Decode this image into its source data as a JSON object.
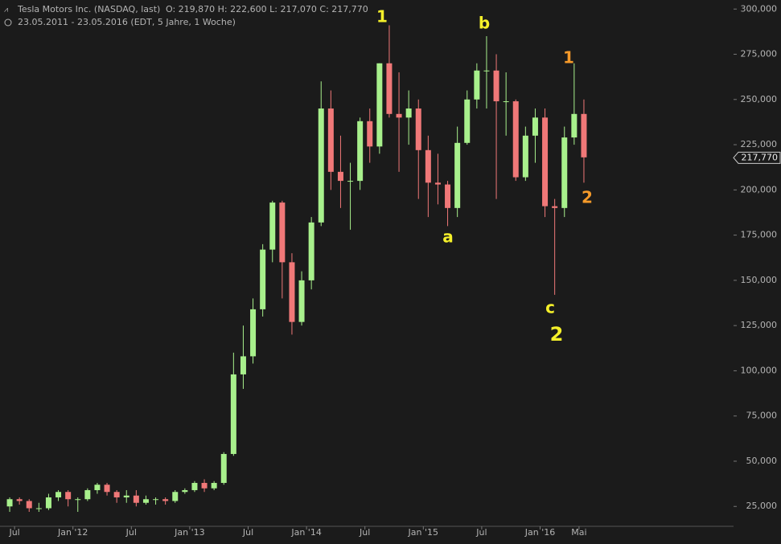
{
  "chart_data": {
    "type": "candlestick",
    "title": "Tesla Motors Inc. (NASDAQ, last)",
    "quote": "O: 219,870   H: 222,600   L: 217,070   C: 217,770",
    "subtitle": "23.05.2011 - 23.05.2016 (EDT, 5 Jahre, 1 Woche)",
    "categories": [
      null,
      "Jul",
      null,
      null,
      null,
      null,
      null,
      "Jan '12",
      null,
      null,
      null,
      null,
      null,
      "Jul",
      null,
      null,
      null,
      null,
      null,
      "Jan '13",
      null,
      null,
      null,
      null,
      null,
      "Jul",
      null,
      null,
      null,
      null,
      null,
      "Jan '14",
      null,
      null,
      null,
      null,
      null,
      "Jul",
      null,
      null,
      null,
      null,
      null,
      "Jan '15",
      null,
      null,
      null,
      null,
      null,
      "Jul",
      null,
      null,
      null,
      null,
      null,
      "Jan '16",
      null,
      null,
      null,
      "Mai"
    ],
    "open": [
      25,
      29,
      28,
      24,
      24,
      30,
      33,
      29,
      29,
      34,
      37,
      33,
      30,
      31,
      27,
      29,
      29,
      28,
      33,
      34,
      38,
      35,
      38,
      54,
      98,
      108,
      134,
      167,
      193,
      160,
      127,
      150,
      182,
      245,
      210,
      205,
      205,
      238,
      224,
      270,
      242,
      240,
      245,
      222,
      204,
      203,
      190,
      226,
      250,
      266,
      266,
      249,
      249,
      207,
      230,
      240,
      191,
      190,
      229,
      242
    ],
    "high": [
      30,
      30,
      29,
      27,
      32,
      34,
      34,
      30,
      35,
      38,
      38,
      34,
      34,
      34,
      31,
      30,
      30,
      34,
      35,
      39,
      40,
      39,
      55,
      110,
      125,
      140,
      170,
      194,
      194,
      165,
      155,
      185,
      260,
      255,
      230,
      215,
      240,
      245,
      270,
      291,
      265,
      255,
      250,
      230,
      220,
      205,
      235,
      255,
      270,
      285,
      275,
      265,
      250,
      235,
      245,
      245,
      195,
      235,
      270,
      250
    ],
    "low": [
      22,
      26,
      22,
      22,
      23,
      28,
      25,
      22,
      28,
      32,
      31,
      27,
      27,
      25,
      26,
      26,
      26,
      27,
      32,
      33,
      33,
      34,
      37,
      53,
      90,
      104,
      130,
      160,
      140,
      120,
      125,
      145,
      180,
      200,
      190,
      178,
      200,
      215,
      220,
      240,
      210,
      225,
      195,
      185,
      192,
      180,
      185,
      225,
      245,
      245,
      195,
      230,
      205,
      205,
      215,
      185,
      142,
      185,
      225,
      204
    ],
    "close": [
      29,
      28,
      24,
      24,
      30,
      33,
      29,
      29,
      34,
      37,
      33,
      30,
      31,
      27,
      29,
      29,
      28,
      33,
      34,
      38,
      35,
      38,
      54,
      98,
      108,
      134,
      167,
      193,
      160,
      127,
      150,
      182,
      245,
      210,
      205,
      205,
      238,
      224,
      270,
      242,
      240,
      245,
      222,
      204,
      203,
      190,
      226,
      250,
      266,
      266,
      249,
      249,
      207,
      230,
      240,
      191,
      190,
      229,
      242,
      218
    ],
    "up_color": "#a8f08c",
    "down_color": "#f07878",
    "ylim": [
      14,
      305
    ],
    "yticks": [
      {
        "value": 25,
        "label": "25,000"
      },
      {
        "value": 50,
        "label": "50,000"
      },
      {
        "value": 75,
        "label": "75,000"
      },
      {
        "value": 100,
        "label": "100,000"
      },
      {
        "value": 125,
        "label": "125,000"
      },
      {
        "value": 150,
        "label": "150,000"
      },
      {
        "value": 175,
        "label": "175,000"
      },
      {
        "value": 200,
        "label": "200,000"
      },
      {
        "value": 225,
        "label": "225,000"
      },
      {
        "value": 250,
        "label": "250,000"
      },
      {
        "value": 275,
        "label": "275,000"
      },
      {
        "value": 300,
        "label": "300,000"
      }
    ],
    "last_price": {
      "value": 217.77,
      "label": "217,770"
    },
    "grid": false,
    "annotations": [
      {
        "text": "1",
        "color": "#f5f02a"
      },
      {
        "text": "b",
        "color": "#f5f02a"
      },
      {
        "text": "a",
        "color": "#f5f02a"
      },
      {
        "text": "c",
        "color": "#f5f02a"
      },
      {
        "text": "2",
        "color": "#f5f02a"
      },
      {
        "text": "1",
        "color": "#f59a2a"
      },
      {
        "text": "2",
        "color": "#f59a2a"
      }
    ]
  }
}
